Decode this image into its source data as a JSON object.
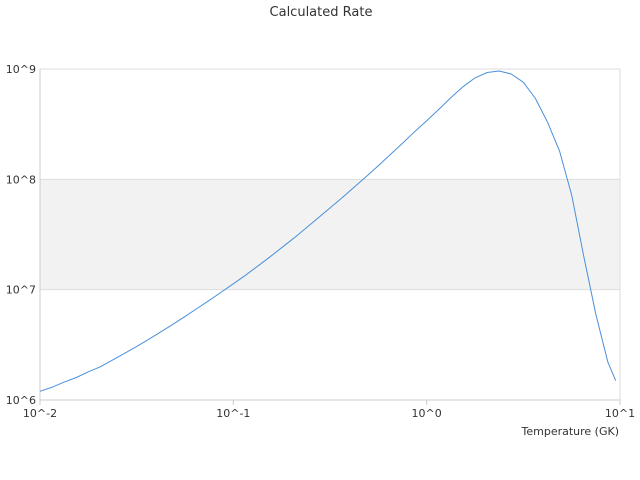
{
  "chart_data": {
    "type": "line",
    "title": "Calculated Rate",
    "xlabel": "Temperature (GK)",
    "ylabel": "",
    "x_scale": "log",
    "y_scale": "log",
    "xlim": [
      0.01,
      10
    ],
    "ylim": [
      1000000,
      1000000000
    ],
    "x_tick_labels": [
      "10^-2",
      "10^-1",
      "10^0",
      "10^1"
    ],
    "y_tick_labels": [
      "10^6",
      "10^7",
      "10^8",
      "10^9"
    ],
    "grid": true,
    "legend": "none",
    "series": [
      {
        "color": "#4a90d9",
        "x": [
          0.01,
          0.0115,
          0.0133,
          0.0154,
          0.0178,
          0.0205,
          0.0237,
          0.0274,
          0.0316,
          0.0365,
          0.0422,
          0.0487,
          0.0562,
          0.0649,
          0.075,
          0.0866,
          0.1,
          0.1155,
          0.1334,
          0.154,
          0.1778,
          0.2054,
          0.2371,
          0.2738,
          0.3162,
          0.3652,
          0.4217,
          0.487,
          0.5623,
          0.6494,
          0.7499,
          0.866,
          1.0,
          1.155,
          1.334,
          1.54,
          1.778,
          2.054,
          2.371,
          2.738,
          3.162,
          3.652,
          4.217,
          4.87,
          5.623,
          6.494,
          7.499,
          8.66,
          9.5
        ],
        "y": [
          1200000,
          1300000,
          1450000,
          1600000,
          1800000,
          2000000,
          2300000,
          2650000,
          3050000,
          3550000,
          4150000,
          4850000,
          5700000,
          6750000,
          8000000,
          9500000,
          11300000,
          13500000,
          16300000,
          19700000,
          24000000,
          29300000,
          36000000,
          44500000,
          55000000,
          68000000,
          85000000,
          106000000,
          133000000,
          168000000,
          212000000,
          270000000,
          340000000,
          430000000,
          550000000,
          690000000,
          830000000,
          930000000,
          960000000,
          900000000,
          760000000,
          540000000,
          330000000,
          180000000,
          72000000,
          20000000,
          6000000,
          2200000,
          1500000
        ]
      }
    ]
  }
}
